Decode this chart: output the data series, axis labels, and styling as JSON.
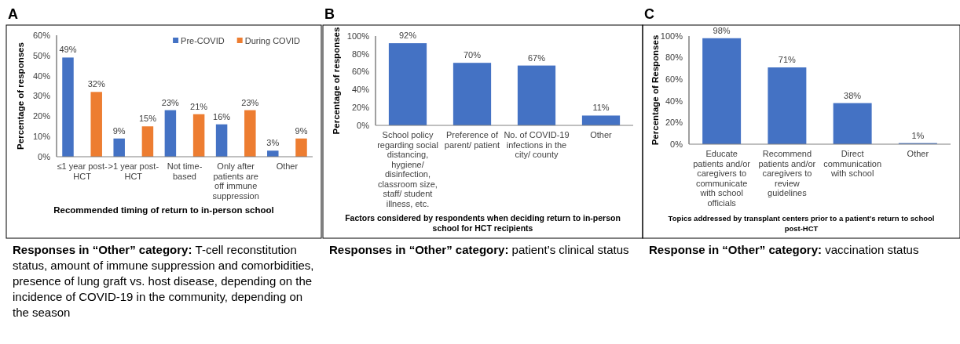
{
  "chart_data": [
    {
      "type": "bar",
      "title": "A",
      "xlabel": "Recommended timing of return to in-person school",
      "ylabel": "Percentage of responses",
      "categories": [
        "≤1 year post-HCT",
        ">1 year post-HCT",
        "Not time-based",
        "Only after patients are off immune suppression",
        "Other"
      ],
      "series": [
        {
          "name": "Pre-COVID",
          "color": "#4472c4",
          "values": [
            49,
            9,
            23,
            16,
            3
          ],
          "value_labels": [
            "49%",
            "9%",
            "23%",
            "16%",
            "3%"
          ]
        },
        {
          "name": "During COVID",
          "color": "#ed7d31",
          "values": [
            32,
            15,
            21,
            23,
            9
          ],
          "value_labels": [
            "32%",
            "15%",
            "21%",
            "23%",
            "9%"
          ]
        }
      ],
      "ylim": [
        0,
        60
      ],
      "yticks": [
        {
          "value": 0,
          "label": "0%"
        },
        {
          "value": 10,
          "label": "10%"
        },
        {
          "value": 20,
          "label": "20%"
        },
        {
          "value": 30,
          "label": "30%"
        },
        {
          "value": 40,
          "label": "40%"
        },
        {
          "value": 50,
          "label": "50%"
        },
        {
          "value": 60,
          "label": "60%"
        }
      ],
      "grid": false,
      "legend": "top right",
      "annotations": [
        "Responses in “Other” category: T-cell reconstitution status, amount of immune suppression and comorbidities, presence of lung graft vs. host disease, depending on the incidence of COVID-19 in the community, depending on the season"
      ]
    },
    {
      "type": "bar",
      "title": "B",
      "xlabel": "Factors considered by respondents  when deciding return to in-person school for HCT recipients",
      "ylabel": "Percentage of responses",
      "categories": [
        "School policy regarding social distancing, hygiene/ disinfection, classroom size, staff/ student illness, etc.",
        "Preference of parent/ patient",
        "No. of COVID-19 infections in the city/ county",
        "Other"
      ],
      "series": [
        {
          "color": "#4472c4",
          "values": [
            92,
            70,
            67,
            11
          ],
          "value_labels": [
            "92%",
            "70%",
            "67%",
            "11%"
          ]
        }
      ],
      "ylim": [
        0,
        100
      ],
      "yticks": [
        {
          "value": 0,
          "label": "0%"
        },
        {
          "value": 20,
          "label": "20%"
        },
        {
          "value": 40,
          "label": "40%"
        },
        {
          "value": 60,
          "label": "60%"
        },
        {
          "value": 80,
          "label": "80%"
        },
        {
          "value": 100,
          "label": "100%"
        }
      ],
      "grid": false,
      "legend": false,
      "annotations": [
        "Responses in “Other” category: patient’s clinical status"
      ]
    },
    {
      "type": "bar",
      "title": "C",
      "xlabel": "Topics addressed by transplant centers prior to a patient's return to school post-HCT",
      "ylabel": "Percentage of Responses",
      "categories": [
        "Educate patients and/or caregivers to communicate with school officials",
        "Recommend patients and/or caregivers to review guidelines",
        "Direct communication with school",
        "Other"
      ],
      "series": [
        {
          "color": "#4472c4",
          "values": [
            98,
            71,
            38,
            1
          ],
          "value_labels": [
            "98%",
            "71%",
            "38%",
            "1%"
          ]
        }
      ],
      "ylim": [
        0,
        100
      ],
      "yticks": [
        {
          "value": 0,
          "label": "0%"
        },
        {
          "value": 20,
          "label": "20%"
        },
        {
          "value": 40,
          "label": "40%"
        },
        {
          "value": 60,
          "label": "60%"
        },
        {
          "value": 80,
          "label": "80%"
        },
        {
          "value": 100,
          "label": "100%"
        }
      ],
      "grid": false,
      "legend": false,
      "annotations": [
        "Response in “Other” category: vaccination status"
      ]
    }
  ]
}
